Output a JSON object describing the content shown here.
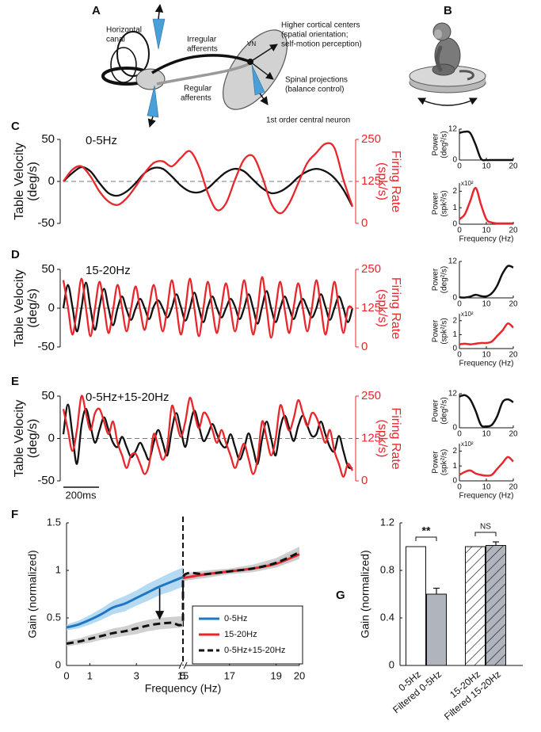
{
  "panel_labels": [
    "A",
    "B",
    "C",
    "D",
    "E",
    "F",
    "G"
  ],
  "diagram": {
    "labels": [
      [
        "Horizontal",
        "canal"
      ],
      [
        "Irregular",
        "afferents"
      ],
      [
        "Regular",
        "afferents"
      ],
      [
        "VN"
      ],
      [
        "Higher cortical centers",
        "(spatial orientation;",
        "self-motion perception)"
      ],
      [
        "Spinal projections",
        "(balance control)"
      ],
      [
        "1st order central neuron"
      ]
    ]
  },
  "chart_data": [
    {
      "type": "line",
      "title": "0-5Hz",
      "ylabel": [
        "Table Velocity",
        "(deg/s)"
      ],
      "y2label": [
        "Firing Rate",
        "(spk/s)"
      ],
      "ylim": [
        -50,
        50
      ],
      "yticks": [
        -50,
        0,
        50
      ],
      "y2lim": [
        0,
        250
      ],
      "y2ticks": [
        0,
        125,
        250
      ],
      "zero_line": true,
      "series": [
        {
          "color": "#111111",
          "values": [
            0,
            10,
            17,
            12,
            -2,
            -14,
            -17,
            -12,
            -2,
            10,
            16,
            15,
            6,
            -5,
            -12,
            -13,
            -8,
            2,
            11,
            15,
            12,
            2,
            -8,
            -14,
            -12,
            -5,
            5,
            12,
            15,
            12,
            4,
            -10,
            -30
          ]
        },
        {
          "color": "#e8262b",
          "axis": "y2",
          "values": [
            125,
            160,
            170,
            140,
            95,
            65,
            55,
            75,
            110,
            150,
            180,
            185,
            170,
            195,
            215,
            170,
            90,
            40,
            60,
            130,
            190,
            200,
            140,
            60,
            30,
            60,
            120,
            180,
            210,
            237,
            225,
            130,
            50
          ]
        }
      ]
    },
    {
      "type": "line",
      "ylabel": [
        "Power",
        "(deg²/s)"
      ],
      "x": [
        0,
        2,
        4,
        6,
        8,
        10,
        12,
        14,
        16,
        18,
        20
      ],
      "xlim": [
        0,
        20
      ],
      "xticks": [
        0,
        10,
        20
      ],
      "ylim": [
        0,
        12
      ],
      "yticks": [
        0,
        12
      ],
      "series": [
        {
          "color": "#111111",
          "values": [
            10.5,
            11,
            10.5,
            6,
            0.5,
            0,
            0,
            0,
            0,
            0,
            0
          ]
        }
      ]
    },
    {
      "type": "line",
      "ylabel": [
        "Power",
        "(spk²/s)"
      ],
      "y_multiplier": "x10²",
      "xlabel": "Frequency (Hz)",
      "x": [
        0,
        2,
        4,
        6,
        8,
        10,
        12,
        14,
        16,
        18,
        20
      ],
      "xlim": [
        0,
        20
      ],
      "xticks": [
        0,
        10,
        20
      ],
      "ylim": [
        0,
        2.5
      ],
      "yticks": [
        0,
        1,
        2
      ],
      "series": [
        {
          "color": "#e8262b",
          "values": [
            0.3,
            0.6,
            1.4,
            2.2,
            1.2,
            0.3,
            0.1,
            0.05,
            0.05,
            0.05,
            0.05
          ]
        }
      ]
    },
    {
      "type": "line",
      "title": "15-20Hz",
      "ylabel": [
        "Table Velocity",
        "(deg/s)"
      ],
      "y2label": [
        "Firing Rate",
        "(spk/s)"
      ],
      "ylim": [
        -50,
        50
      ],
      "yticks": [
        -50,
        0,
        50
      ],
      "y2lim": [
        0,
        250
      ],
      "y2ticks": [
        0,
        125,
        250
      ],
      "zero_line": true,
      "series": [
        {
          "color": "#111111",
          "values": [
            0,
            30,
            2,
            -30,
            0,
            33,
            0,
            -28,
            2,
            25,
            0,
            -22,
            0,
            15,
            -2,
            -15,
            0,
            12,
            0,
            -14,
            2,
            10,
            0,
            -12,
            0,
            18,
            2,
            -16,
            0,
            20,
            0,
            -18,
            2,
            15,
            0,
            -12,
            0,
            12,
            2,
            -14,
            0,
            18,
            0,
            -20,
            2,
            22,
            0,
            -18,
            0,
            15,
            0,
            -14,
            2,
            12,
            0,
            -12,
            0,
            18,
            2,
            -15,
            0,
            15,
            0,
            -18,
            0
          ]
        },
        {
          "color": "#e8262b",
          "axis": "y2",
          "values": [
            215,
            130,
            40,
            120,
            220,
            125,
            35,
            125,
            210,
            130,
            45,
            120,
            200,
            125,
            50,
            125,
            195,
            120,
            55,
            130,
            200,
            125,
            50,
            125,
            215,
            130,
            40,
            120,
            220,
            125,
            35,
            125,
            210,
            120,
            45,
            130,
            205,
            125,
            50,
            125,
            215,
            130,
            40,
            120,
            225,
            125,
            30,
            125,
            210,
            120,
            45,
            130,
            205,
            125,
            50,
            125,
            215,
            130,
            40,
            120,
            210,
            125,
            45,
            125,
            125
          ]
        }
      ]
    },
    {
      "type": "line",
      "ylabel": [
        "Power",
        "(deg²/s)"
      ],
      "x": [
        0,
        2,
        4,
        6,
        8,
        10,
        12,
        14,
        16,
        18,
        20
      ],
      "xlim": [
        0,
        20
      ],
      "xticks": [
        0,
        10,
        20
      ],
      "ylim": [
        0,
        12
      ],
      "yticks": [
        0,
        12
      ],
      "series": [
        {
          "color": "#111111",
          "values": [
            0.2,
            0.1,
            0.4,
            1,
            0.6,
            0.5,
            1.5,
            4,
            8,
            10.5,
            10
          ]
        }
      ]
    },
    {
      "type": "line",
      "ylabel": [
        "Power",
        "(spk²/s)"
      ],
      "y_multiplier": "x10²",
      "xlabel": "Frequency (Hz)",
      "x": [
        0,
        2,
        4,
        6,
        8,
        10,
        12,
        14,
        16,
        18,
        20
      ],
      "xlim": [
        0,
        20
      ],
      "xticks": [
        0,
        10,
        20
      ],
      "ylim": [
        0,
        2.5
      ],
      "yticks": [
        0,
        1,
        2
      ],
      "series": [
        {
          "color": "#e8262b",
          "values": [
            0.3,
            0.35,
            0.3,
            0.35,
            0.4,
            0.4,
            0.5,
            0.9,
            1.3,
            1.8,
            1.5
          ]
        }
      ]
    },
    {
      "type": "line",
      "title": "0-5Hz+15-20Hz",
      "ylabel": [
        "Table Velocity",
        "(deg/s)"
      ],
      "y2label": [
        "Firing Rate",
        "(spk/s)"
      ],
      "scale_bar_label": "200ms",
      "ylim": [
        -50,
        50
      ],
      "yticks": [
        -50,
        0,
        50
      ],
      "y2lim": [
        0,
        250
      ],
      "y2ticks": [
        0,
        125,
        250
      ],
      "zero_line": true,
      "series": [
        {
          "color": "#111111",
          "values": [
            5,
            40,
            5,
            -30,
            15,
            35,
            15,
            -5,
            10,
            25,
            10,
            -5,
            -10,
            2,
            -10,
            -22,
            -15,
            -5,
            -15,
            -25,
            -5,
            10,
            -5,
            -20,
            10,
            30,
            10,
            -10,
            15,
            33,
            15,
            -3,
            5,
            17,
            5,
            -7,
            -10,
            5,
            -10,
            -25,
            -12,
            6,
            -12,
            -30,
            0,
            20,
            0,
            -20,
            12,
            27,
            12,
            -3,
            15,
            27,
            15,
            3,
            5,
            20,
            5,
            -10,
            -15,
            3,
            -15,
            -33,
            -35
          ]
        },
        {
          "color": "#e8262b",
          "axis": "y2",
          "values": [
            212,
            150,
            88,
            150,
            250,
            200,
            150,
            200,
            212,
            175,
            138,
            175,
            112,
            75,
            38,
            75,
            80,
            50,
            20,
            50,
            138,
            100,
            62,
            100,
            220,
            175,
            130,
            175,
            245,
            200,
            155,
            200,
            188,
            150,
            112,
            150,
            112,
            75,
            38,
            75,
            110,
            65,
            20,
            65,
            175,
            125,
            75,
            125,
            222,
            185,
            148,
            185,
            238,
            200,
            162,
            200,
            188,
            150,
            112,
            150,
            88,
            50,
            12,
            50,
            30
          ]
        }
      ]
    },
    {
      "type": "line",
      "ylabel": [
        "Power",
        "(deg²/s)"
      ],
      "x": [
        0,
        2,
        4,
        6,
        8,
        10,
        12,
        14,
        16,
        18,
        20
      ],
      "xlim": [
        0,
        20
      ],
      "xticks": [
        0,
        10,
        20
      ],
      "ylim": [
        0,
        12
      ],
      "yticks": [
        0,
        12
      ],
      "series": [
        {
          "color": "#111111",
          "values": [
            11,
            11.5,
            10,
            6,
            1,
            0.5,
            1,
            4,
            9,
            10,
            9
          ]
        }
      ]
    },
    {
      "type": "line",
      "ylabel": [
        "Power",
        "(spk²/s)"
      ],
      "y_multiplier": "x10²",
      "xlabel": "Frequency (Hz)",
      "x": [
        0,
        2,
        4,
        6,
        8,
        10,
        12,
        14,
        16,
        18,
        20
      ],
      "xlim": [
        0,
        20
      ],
      "xticks": [
        0,
        10,
        20
      ],
      "ylim": [
        0,
        2.5
      ],
      "yticks": [
        0,
        1,
        2
      ],
      "series": [
        {
          "color": "#e8262b",
          "values": [
            0.4,
            0.6,
            0.7,
            0.5,
            0.4,
            0.35,
            0.4,
            0.8,
            1.2,
            1.6,
            1.3
          ]
        }
      ]
    },
    {
      "type": "line",
      "ylabel": "Gain (normalized)",
      "xlabel": "Frequency (Hz)",
      "xlim": [
        0,
        20
      ],
      "xticks": [
        0,
        1,
        3,
        5,
        15,
        17,
        19,
        20
      ],
      "ylim": [
        0,
        1.5
      ],
      "yticks": [
        0,
        0.5,
        1,
        1.5
      ],
      "legend": "lower right",
      "series": [
        {
          "name": "0-5Hz",
          "color": "#1f77c4",
          "band_color": "#a9d3f0",
          "x": [
            0,
            0.5,
            1,
            1.5,
            2,
            2.5,
            3,
            3.5,
            4,
            4.5,
            5
          ],
          "values": [
            0.4,
            0.43,
            0.48,
            0.54,
            0.61,
            0.65,
            0.71,
            0.77,
            0.83,
            0.88,
            0.93
          ],
          "errors": [
            0.03,
            0.04,
            0.05,
            0.06,
            0.07,
            0.08,
            0.08,
            0.09,
            0.09,
            0.1,
            0.1
          ]
        },
        {
          "name": "15-20Hz",
          "color": "#e8262b",
          "band_color": "#c4c4c4",
          "x": [
            15,
            16,
            17,
            18,
            19,
            20
          ],
          "values": [
            0.92,
            0.96,
            0.99,
            1.02,
            1.07,
            1.17
          ],
          "errors": [
            0.03,
            0.03,
            0.02,
            0.02,
            0.04,
            0.05
          ]
        },
        {
          "name": "0-5Hz+15-20Hz",
          "color": "#111111",
          "band_color": "#c8c8c8",
          "dash": true,
          "x": [
            0,
            0.5,
            1,
            1.5,
            2,
            2.5,
            3,
            3.5,
            4,
            4.5,
            5,
            15,
            16,
            17,
            18,
            19,
            20
          ],
          "values": [
            0.23,
            0.25,
            0.28,
            0.31,
            0.34,
            0.36,
            0.39,
            0.42,
            0.44,
            0.45,
            0.46,
            0.93,
            0.96,
            0.99,
            1.02,
            1.08,
            1.19
          ],
          "errors": [
            0.03,
            0.03,
            0.04,
            0.04,
            0.05,
            0.05,
            0.06,
            0.06,
            0.06,
            0.06,
            0.06,
            0.04,
            0.04,
            0.03,
            0.04,
            0.05,
            0.06
          ]
        }
      ]
    },
    {
      "type": "bar",
      "ylabel": "Gain (normalized)",
      "categories": [
        "0-5Hz",
        "Filtered 0-5Hz",
        "15-20Hz",
        "Filtered 15-20Hz"
      ],
      "values": [
        1,
        0.6,
        1,
        1.01
      ],
      "errors": [
        null,
        0.05,
        null,
        0.03
      ],
      "colors": [
        "#ffffff",
        "#b0b4bc",
        "#ffffff",
        "#b0b4bc"
      ],
      "hatch": [
        false,
        false,
        true,
        true
      ],
      "significance": [
        "**",
        "NS"
      ],
      "ylim": [
        0,
        1.2
      ],
      "yticks": [
        0,
        0.4,
        0.8,
        1.2
      ]
    }
  ]
}
